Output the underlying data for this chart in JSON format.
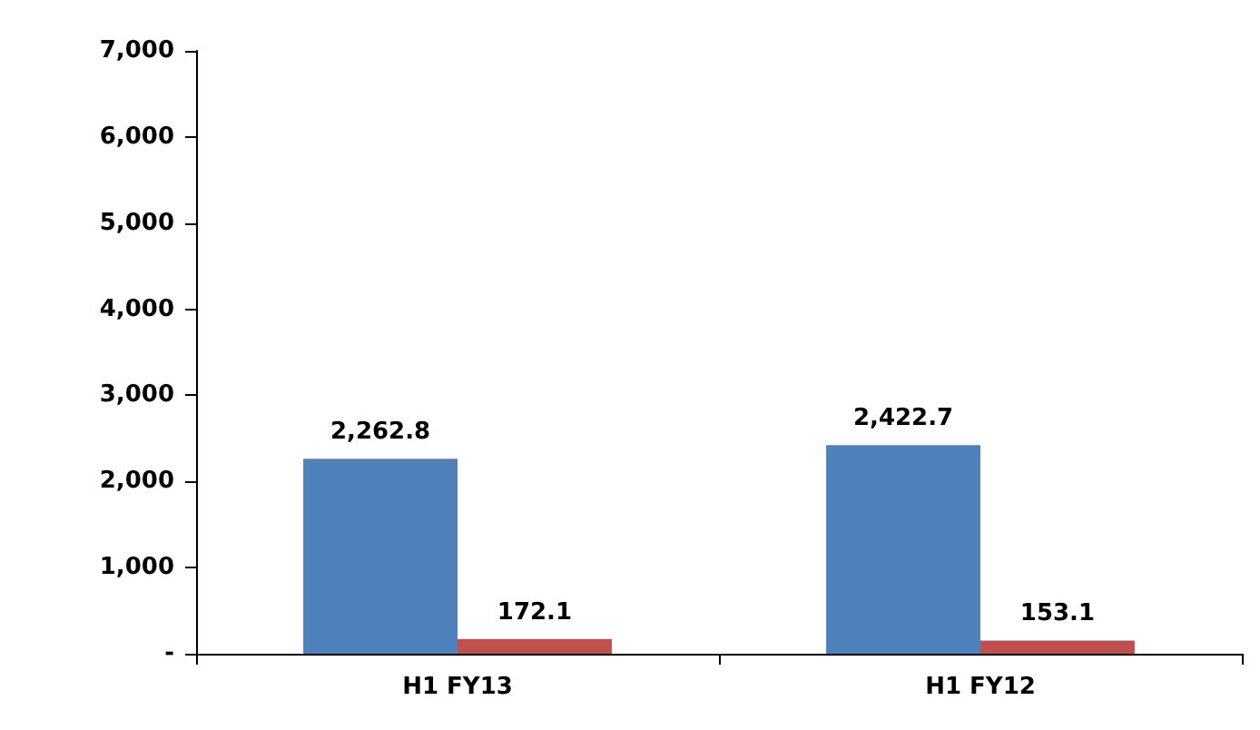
{
  "chart_data": {
    "type": "bar",
    "categories": [
      "H1 FY13",
      "H1 FY12"
    ],
    "series": [
      {
        "color": "#4f81bd",
        "values": [
          2262.8,
          2422.7
        ],
        "value_labels": [
          "2,262.8",
          "2,422.7"
        ]
      },
      {
        "color": "#c0504d",
        "values": [
          172.1,
          153.1
        ],
        "value_labels": [
          "172.1",
          "153.1"
        ]
      }
    ],
    "ylim": [
      0,
      7000
    ],
    "yticks": [
      {
        "value": 0,
        "label": "-"
      },
      {
        "value": 1000,
        "label": "1,000"
      },
      {
        "value": 2000,
        "label": "2,000"
      },
      {
        "value": 3000,
        "label": "3,000"
      },
      {
        "value": 4000,
        "label": "4,000"
      },
      {
        "value": 5000,
        "label": "5,000"
      },
      {
        "value": 6000,
        "label": "6,000"
      },
      {
        "value": 7000,
        "label": "7,000"
      }
    ],
    "grid": false
  }
}
